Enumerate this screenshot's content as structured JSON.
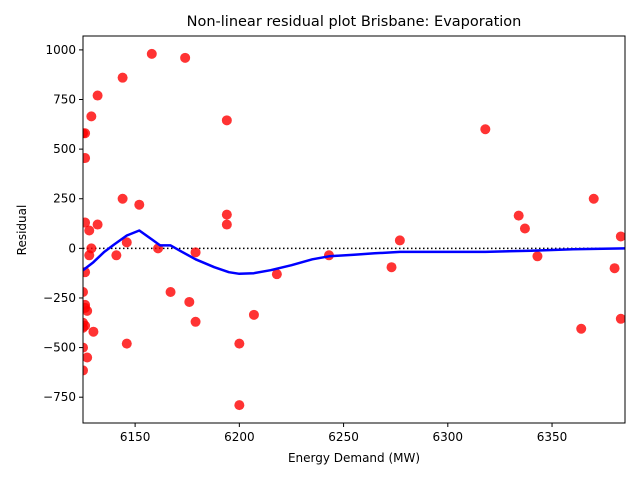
{
  "chart_data": {
    "type": "scatter",
    "title": "Non-linear residual plot Brisbane: Evaporation",
    "xlabel": "Energy Demand (MW)",
    "ylabel": "Residual",
    "xlim": [
      6125,
      6385
    ],
    "ylim": [
      -880,
      1070
    ],
    "x_ticks": [
      6150,
      6200,
      6250,
      6300,
      6350
    ],
    "y_ticks": [
      -750,
      -500,
      -250,
      0,
      250,
      500,
      750,
      1000
    ],
    "grid": false,
    "reference_line": {
      "y": 0,
      "style": "dotted",
      "color": "#000000"
    },
    "series": [
      {
        "kind": "scatter",
        "color": "#ff0000",
        "points": [
          {
            "x": 6125,
            "y": 580
          },
          {
            "x": 6125,
            "y": -220
          },
          {
            "x": 6125,
            "y": -375
          },
          {
            "x": 6125,
            "y": -400
          },
          {
            "x": 6125,
            "y": -500
          },
          {
            "x": 6125,
            "y": -615
          },
          {
            "x": 6126,
            "y": 580
          },
          {
            "x": 6126,
            "y": 455
          },
          {
            "x": 6126,
            "y": 130
          },
          {
            "x": 6126,
            "y": -120
          },
          {
            "x": 6126,
            "y": -285
          },
          {
            "x": 6126,
            "y": -300
          },
          {
            "x": 6126,
            "y": -390
          },
          {
            "x": 6127,
            "y": -550
          },
          {
            "x": 6127,
            "y": -315
          },
          {
            "x": 6128,
            "y": 90
          },
          {
            "x": 6128,
            "y": -35
          },
          {
            "x": 6129,
            "y": 665
          },
          {
            "x": 6129,
            "y": 0
          },
          {
            "x": 6130,
            "y": -420
          },
          {
            "x": 6132,
            "y": 770
          },
          {
            "x": 6132,
            "y": 120
          },
          {
            "x": 6141,
            "y": -35
          },
          {
            "x": 6144,
            "y": 860
          },
          {
            "x": 6144,
            "y": 250
          },
          {
            "x": 6146,
            "y": 30
          },
          {
            "x": 6146,
            "y": -480
          },
          {
            "x": 6152,
            "y": 220
          },
          {
            "x": 6158,
            "y": 980
          },
          {
            "x": 6161,
            "y": 0
          },
          {
            "x": 6167,
            "y": -220
          },
          {
            "x": 6174,
            "y": 960
          },
          {
            "x": 6176,
            "y": -270
          },
          {
            "x": 6179,
            "y": -20
          },
          {
            "x": 6179,
            "y": -370
          },
          {
            "x": 6194,
            "y": 645
          },
          {
            "x": 6194,
            "y": 170
          },
          {
            "x": 6194,
            "y": 120
          },
          {
            "x": 6200,
            "y": -480
          },
          {
            "x": 6200,
            "y": -790
          },
          {
            "x": 6207,
            "y": -335
          },
          {
            "x": 6218,
            "y": -130
          },
          {
            "x": 6243,
            "y": -35
          },
          {
            "x": 6273,
            "y": -95
          },
          {
            "x": 6277,
            "y": 40
          },
          {
            "x": 6318,
            "y": 600
          },
          {
            "x": 6334,
            "y": 165
          },
          {
            "x": 6337,
            "y": 100
          },
          {
            "x": 6343,
            "y": -40
          },
          {
            "x": 6364,
            "y": -405
          },
          {
            "x": 6370,
            "y": 250
          },
          {
            "x": 6380,
            "y": -100
          },
          {
            "x": 6383,
            "y": 60
          },
          {
            "x": 6383,
            "y": -355
          }
        ]
      },
      {
        "kind": "line",
        "color": "#0000ff",
        "points": [
          {
            "x": 6125,
            "y": -110
          },
          {
            "x": 6130,
            "y": -70
          },
          {
            "x": 6135,
            "y": -20
          },
          {
            "x": 6140,
            "y": 20
          },
          {
            "x": 6146,
            "y": 65
          },
          {
            "x": 6152,
            "y": 90
          },
          {
            "x": 6158,
            "y": 45
          },
          {
            "x": 6162,
            "y": 15
          },
          {
            "x": 6167,
            "y": 15
          },
          {
            "x": 6172,
            "y": -15
          },
          {
            "x": 6179,
            "y": -55
          },
          {
            "x": 6188,
            "y": -95
          },
          {
            "x": 6195,
            "y": -120
          },
          {
            "x": 6200,
            "y": -128
          },
          {
            "x": 6207,
            "y": -125
          },
          {
            "x": 6215,
            "y": -110
          },
          {
            "x": 6225,
            "y": -85
          },
          {
            "x": 6235,
            "y": -55
          },
          {
            "x": 6243,
            "y": -40
          },
          {
            "x": 6255,
            "y": -32
          },
          {
            "x": 6265,
            "y": -25
          },
          {
            "x": 6277,
            "y": -18
          },
          {
            "x": 6300,
            "y": -18
          },
          {
            "x": 6318,
            "y": -18
          },
          {
            "x": 6340,
            "y": -12
          },
          {
            "x": 6360,
            "y": -5
          },
          {
            "x": 6385,
            "y": 0
          }
        ]
      }
    ]
  }
}
